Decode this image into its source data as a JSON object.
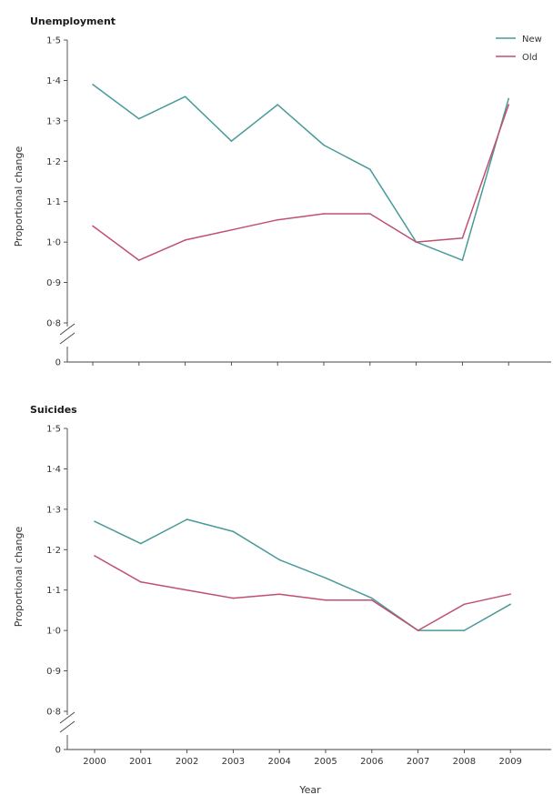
{
  "chart_data": [
    {
      "type": "line",
      "title": "Unemployment",
      "ylabel": "Proportional change",
      "xlabel": "",
      "x": [
        "2000",
        "2001",
        "2002",
        "2003",
        "2004",
        "2005",
        "2006",
        "2007",
        "2008",
        "2009"
      ],
      "yticks": [
        "0",
        "0·8",
        "0·9",
        "1·0",
        "1·1",
        "1·2",
        "1·3",
        "1·4",
        "1·5"
      ],
      "ylim": [
        0.8,
        1.5
      ],
      "axis_break": true,
      "legend": {
        "placement": "top-right",
        "entries": [
          "New",
          "Old"
        ]
      },
      "series": [
        {
          "name": "New",
          "color": "#4a9a9a",
          "values": [
            1.39,
            1.305,
            1.36,
            1.25,
            1.34,
            1.24,
            1.18,
            1.0,
            0.955,
            1.355
          ]
        },
        {
          "name": "Old",
          "color": "#c0506e",
          "values": [
            1.04,
            0.955,
            1.005,
            1.03,
            1.055,
            1.07,
            1.07,
            1.0,
            1.01,
            1.34
          ]
        }
      ]
    },
    {
      "type": "line",
      "title": "Suicides",
      "ylabel": "Proportional change",
      "xlabel": "Year",
      "x": [
        "2000",
        "2001",
        "2002",
        "2003",
        "2004",
        "2005",
        "2006",
        "2007",
        "2008",
        "2009"
      ],
      "yticks": [
        "0",
        "0·8",
        "0·9",
        "1·0",
        "1·1",
        "1·2",
        "1·3",
        "1·4",
        "1·5"
      ],
      "ylim": [
        0.8,
        1.5
      ],
      "axis_break": true,
      "series": [
        {
          "name": "New",
          "color": "#4a9a9a",
          "values": [
            1.27,
            1.215,
            1.275,
            1.245,
            1.175,
            1.13,
            1.08,
            1.0,
            1.0,
            1.065
          ]
        },
        {
          "name": "Old",
          "color": "#c0506e",
          "values": [
            1.185,
            1.12,
            1.1,
            1.08,
            1.09,
            1.075,
            1.075,
            1.0,
            1.065,
            1.09
          ]
        }
      ]
    }
  ]
}
